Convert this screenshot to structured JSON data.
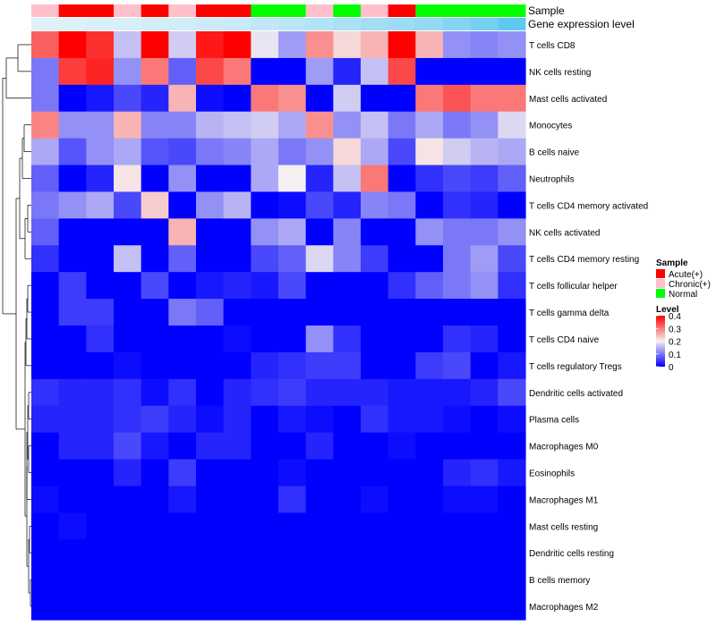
{
  "chart_data": {
    "type": "heatmap",
    "title": "",
    "annotation_labels": {
      "sample": "Sample",
      "gene": "Gene expression level"
    },
    "rows": [
      "T cells CD8",
      "NK cells resting",
      "Mast cells activated",
      "Monocytes",
      "B cells naive",
      "Neutrophils",
      "T cells CD4 memory activated",
      "NK cells activated",
      "T cells CD4 memory resting",
      "T cells follicular helper",
      "T cells gamma delta",
      "T cells CD4 naive",
      "T cells regulatory  Tregs",
      "Dendritic cells activated",
      "Plasma cells",
      "Macrophages M0",
      "Eosinophils",
      "Macrophages M1",
      "Mast cells resting",
      "Dendritic cells resting",
      "B cells memory",
      "Macrophages M2"
    ],
    "sample_groups": [
      "Chronic(+)",
      "Acute(+)",
      "Acute(+)",
      "Chronic(+)",
      "Acute(+)",
      "Chronic(+)",
      "Acute(+)",
      "Acute(+)",
      "Normal",
      "Normal",
      "Chronic(+)",
      "Normal",
      "Chronic(+)",
      "Acute(+)",
      "Normal",
      "Normal",
      "Normal",
      "Normal"
    ],
    "gene_expression_level": [
      0.05,
      0.07,
      0.09,
      0.11,
      0.13,
      0.15,
      0.18,
      0.2,
      0.25,
      0.3,
      0.35,
      0.4,
      0.45,
      0.5,
      0.55,
      0.65,
      0.75,
      0.9
    ],
    "values": [
      [
        0.32,
        0.4,
        0.36,
        0.16,
        0.4,
        0.17,
        0.38,
        0.4,
        0.19,
        0.13,
        0.28,
        0.22,
        0.25,
        0.4,
        0.25,
        0.12,
        0.11,
        0.12
      ],
      [
        0.1,
        0.35,
        0.37,
        0.12,
        0.3,
        0.08,
        0.34,
        0.3,
        0.0,
        0.0,
        0.13,
        0.03,
        0.16,
        0.34,
        0.0,
        0.0,
        0.0,
        0.0
      ],
      [
        0.1,
        0.0,
        0.02,
        0.06,
        0.03,
        0.25,
        0.01,
        0.0,
        0.3,
        0.28,
        0.0,
        0.17,
        0.0,
        0.0,
        0.3,
        0.33,
        0.3,
        0.3
      ],
      [
        0.29,
        0.12,
        0.12,
        0.25,
        0.11,
        0.11,
        0.15,
        0.16,
        0.17,
        0.14,
        0.28,
        0.12,
        0.16,
        0.1,
        0.14,
        0.1,
        0.12,
        0.18
      ],
      [
        0.14,
        0.07,
        0.12,
        0.14,
        0.07,
        0.06,
        0.1,
        0.11,
        0.14,
        0.1,
        0.12,
        0.22,
        0.14,
        0.06,
        0.21,
        0.17,
        0.15,
        0.14
      ],
      [
        0.08,
        0.0,
        0.03,
        0.21,
        0.0,
        0.12,
        0.0,
        0.0,
        0.14,
        0.2,
        0.03,
        0.16,
        0.3,
        0.0,
        0.04,
        0.06,
        0.05,
        0.08
      ],
      [
        0.1,
        0.12,
        0.14,
        0.06,
        0.23,
        0.0,
        0.12,
        0.15,
        0.0,
        0.01,
        0.06,
        0.03,
        0.11,
        0.1,
        0.0,
        0.04,
        0.03,
        0.0
      ],
      [
        0.08,
        0.0,
        0.0,
        0.0,
        0.0,
        0.25,
        0.0,
        0.0,
        0.12,
        0.14,
        0.0,
        0.11,
        0.0,
        0.0,
        0.12,
        0.1,
        0.1,
        0.12
      ],
      [
        0.04,
        0.0,
        0.0,
        0.16,
        0.0,
        0.08,
        0.0,
        0.0,
        0.06,
        0.08,
        0.18,
        0.11,
        0.05,
        0.0,
        0.0,
        0.1,
        0.13,
        0.06
      ],
      [
        0.0,
        0.05,
        0.0,
        0.0,
        0.06,
        0.0,
        0.02,
        0.03,
        0.02,
        0.06,
        0.0,
        0.0,
        0.0,
        0.04,
        0.08,
        0.1,
        0.12,
        0.04
      ],
      [
        0.0,
        0.05,
        0.05,
        0.0,
        0.0,
        0.1,
        0.08,
        0.0,
        0.0,
        0.0,
        0.0,
        0.0,
        0.0,
        0.0,
        0.0,
        0.0,
        0.0,
        0.0
      ],
      [
        0.0,
        0.0,
        0.04,
        0.0,
        0.0,
        0.0,
        0.0,
        0.01,
        0.0,
        0.0,
        0.12,
        0.04,
        0.0,
        0.0,
        0.0,
        0.04,
        0.03,
        0.0
      ],
      [
        0.0,
        0.0,
        0.0,
        0.01,
        0.0,
        0.0,
        0.0,
        0.0,
        0.03,
        0.04,
        0.05,
        0.05,
        0.0,
        0.0,
        0.05,
        0.06,
        0.0,
        0.02
      ],
      [
        0.04,
        0.03,
        0.03,
        0.04,
        0.01,
        0.04,
        0.0,
        0.03,
        0.04,
        0.05,
        0.03,
        0.03,
        0.03,
        0.02,
        0.02,
        0.02,
        0.03,
        0.06
      ],
      [
        0.03,
        0.03,
        0.03,
        0.04,
        0.05,
        0.03,
        0.01,
        0.03,
        0.0,
        0.02,
        0.01,
        0.0,
        0.04,
        0.02,
        0.02,
        0.01,
        0.0,
        0.01
      ],
      [
        0.0,
        0.03,
        0.03,
        0.06,
        0.02,
        0.0,
        0.03,
        0.03,
        0.0,
        0.0,
        0.03,
        0.0,
        0.0,
        0.01,
        0.0,
        0.0,
        0.0,
        0.0
      ],
      [
        0.0,
        0.0,
        0.0,
        0.03,
        0.0,
        0.05,
        0.0,
        0.0,
        0.0,
        0.01,
        0.0,
        0.0,
        0.0,
        0.0,
        0.0,
        0.03,
        0.04,
        0.02
      ],
      [
        0.01,
        0.0,
        0.0,
        0.0,
        0.0,
        0.02,
        0.0,
        0.0,
        0.0,
        0.04,
        0.0,
        0.0,
        0.01,
        0.0,
        0.0,
        0.01,
        0.01,
        0.0
      ],
      [
        0.0,
        0.01,
        0.0,
        0.0,
        0.0,
        0.0,
        0.0,
        0.0,
        0.0,
        0.0,
        0.0,
        0.0,
        0.0,
        0.0,
        0.0,
        0.0,
        0.0,
        0.0
      ],
      [
        0.0,
        0.0,
        0.0,
        0.0,
        0.0,
        0.0,
        0.0,
        0.0,
        0.0,
        0.0,
        0.0,
        0.0,
        0.0,
        0.0,
        0.0,
        0.0,
        0.0,
        0.0
      ],
      [
        0.0,
        0.0,
        0.0,
        0.0,
        0.0,
        0.0,
        0.0,
        0.0,
        0.0,
        0.0,
        0.0,
        0.0,
        0.0,
        0.0,
        0.0,
        0.0,
        0.0,
        0.0
      ],
      [
        0.0,
        0.0,
        0.0,
        0.0,
        0.0,
        0.0,
        0.0,
        0.0,
        0.0,
        0.0,
        0.0,
        0.0,
        0.0,
        0.0,
        0.0,
        0.0,
        0.0,
        0.0
      ]
    ],
    "color_scale": {
      "min": 0,
      "max": 0.4,
      "low": "#0000ff",
      "mid": "#f5f0f0",
      "high": "#ff0000",
      "mid_value": 0.2
    },
    "legend": {
      "sample_title": "Sample",
      "sample_entries": [
        {
          "label": "Acute(+)",
          "color": "#ff0000"
        },
        {
          "label": "Chronic(+)",
          "color": "#ffc0cb"
        },
        {
          "label": "Normal",
          "color": "#00ff00"
        }
      ],
      "level_title": "Level",
      "level_ticks": [
        "0.4",
        "0.3",
        "0.2",
        "0.1",
        "0"
      ],
      "level_tick_values": [
        0.4,
        0.3,
        0.2,
        0.1,
        0
      ],
      "placement": "right"
    },
    "gene_colors": {
      "low": "#e8f4fa",
      "high": "#4fc4ee"
    },
    "dendrogram": "hierarchical clustering of rows (left)"
  }
}
